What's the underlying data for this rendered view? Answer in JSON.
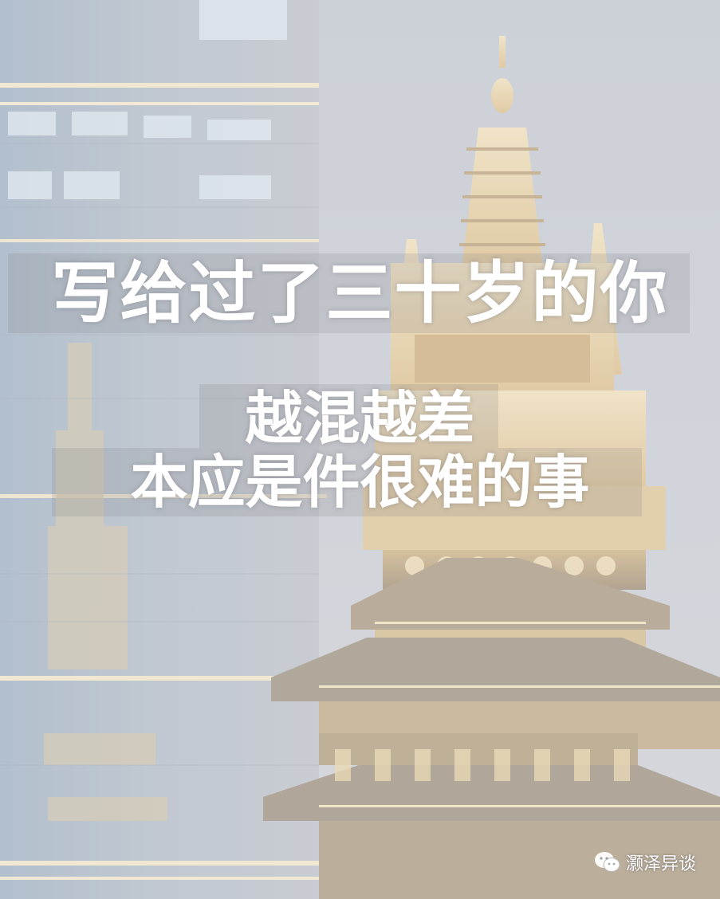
{
  "image": {
    "headline_line1": "写给过了三十岁的你",
    "headline_line2": "越混越差",
    "headline_line3": "本应是件很难的事",
    "watermark_text": "灏泽异谈",
    "watermark_icon": "wechat-icon",
    "colors": {
      "text": "#ffffff",
      "gold": "#e9c98a",
      "glass": "#9fb3c8"
    }
  }
}
